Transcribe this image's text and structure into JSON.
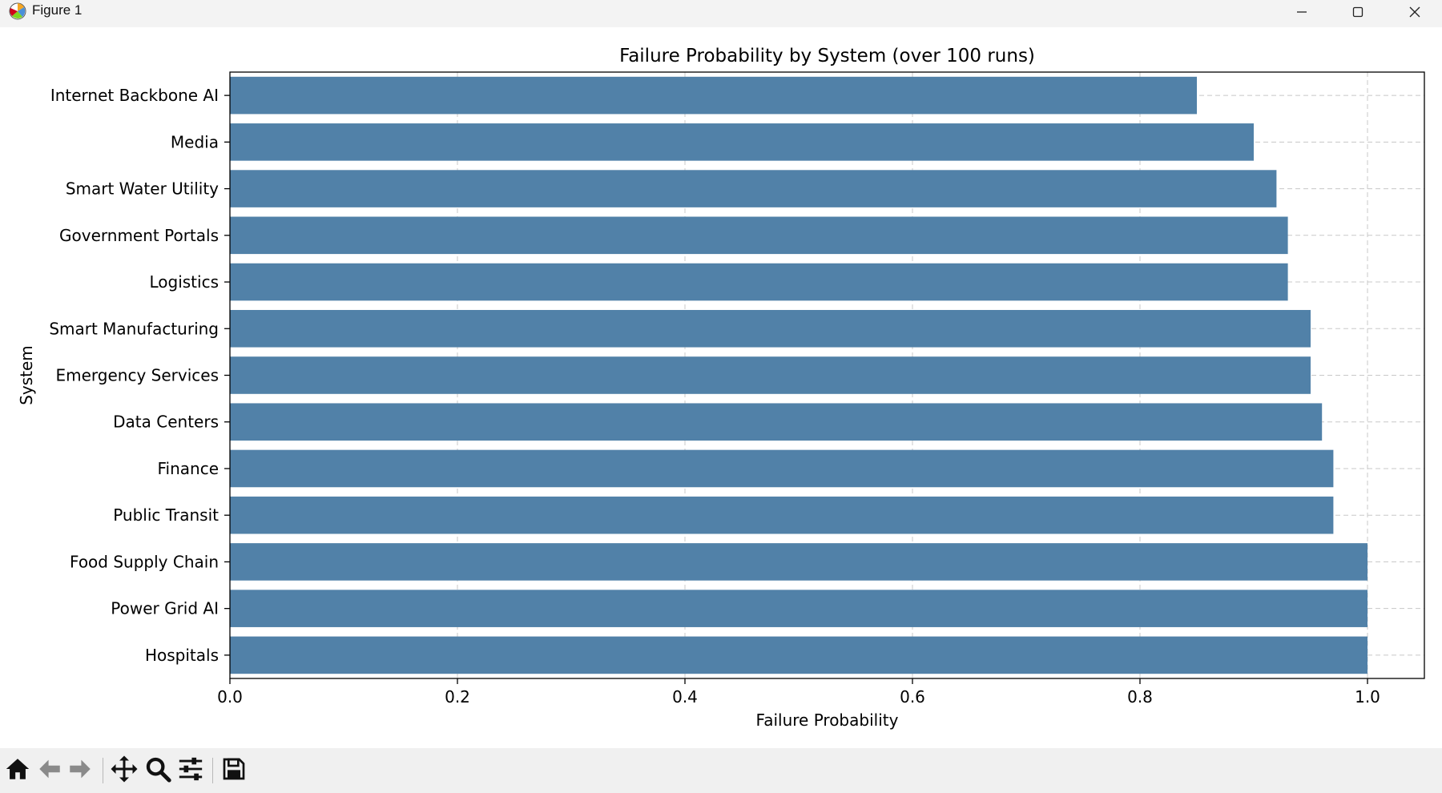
{
  "window": {
    "title": "Figure 1",
    "icon": "matplotlib-icon",
    "controls": [
      "minimize-icon",
      "maximize-icon",
      "close-icon"
    ]
  },
  "toolbar": {
    "tools": [
      {
        "name": "home-button",
        "icon": "home-icon"
      },
      {
        "name": "back-button",
        "icon": "arrow-left-icon"
      },
      {
        "name": "forward-button",
        "icon": "arrow-right-icon"
      },
      {
        "name": "pan-button",
        "icon": "move-icon"
      },
      {
        "name": "zoom-button",
        "icon": "magnifier-icon"
      },
      {
        "name": "configure-subplots-button",
        "icon": "sliders-icon"
      },
      {
        "name": "save-button",
        "icon": "floppy-disk-icon"
      }
    ]
  },
  "chart_data": {
    "type": "bar",
    "orientation": "horizontal",
    "title": "Failure Probability by System (over 100 runs)",
    "xlabel": "Failure Probability",
    "ylabel": "System",
    "categories": [
      "Internet Backbone AI",
      "Media",
      "Smart Water Utility",
      "Government Portals",
      "Logistics",
      "Smart Manufacturing",
      "Emergency Services",
      "Data Centers",
      "Finance",
      "Public Transit",
      "Food Supply Chain",
      "Power Grid AI",
      "Hospitals"
    ],
    "values": [
      0.85,
      0.9,
      0.92,
      0.93,
      0.93,
      0.95,
      0.95,
      0.96,
      0.97,
      0.97,
      1.0,
      1.0,
      1.0
    ],
    "xlim": [
      0,
      1.05
    ],
    "xticks": [
      "0.0",
      "0.2",
      "0.4",
      "0.6",
      "0.8",
      "1.0"
    ],
    "grid": true,
    "grid_style": "dashed",
    "bar_color": "#5181a8"
  }
}
